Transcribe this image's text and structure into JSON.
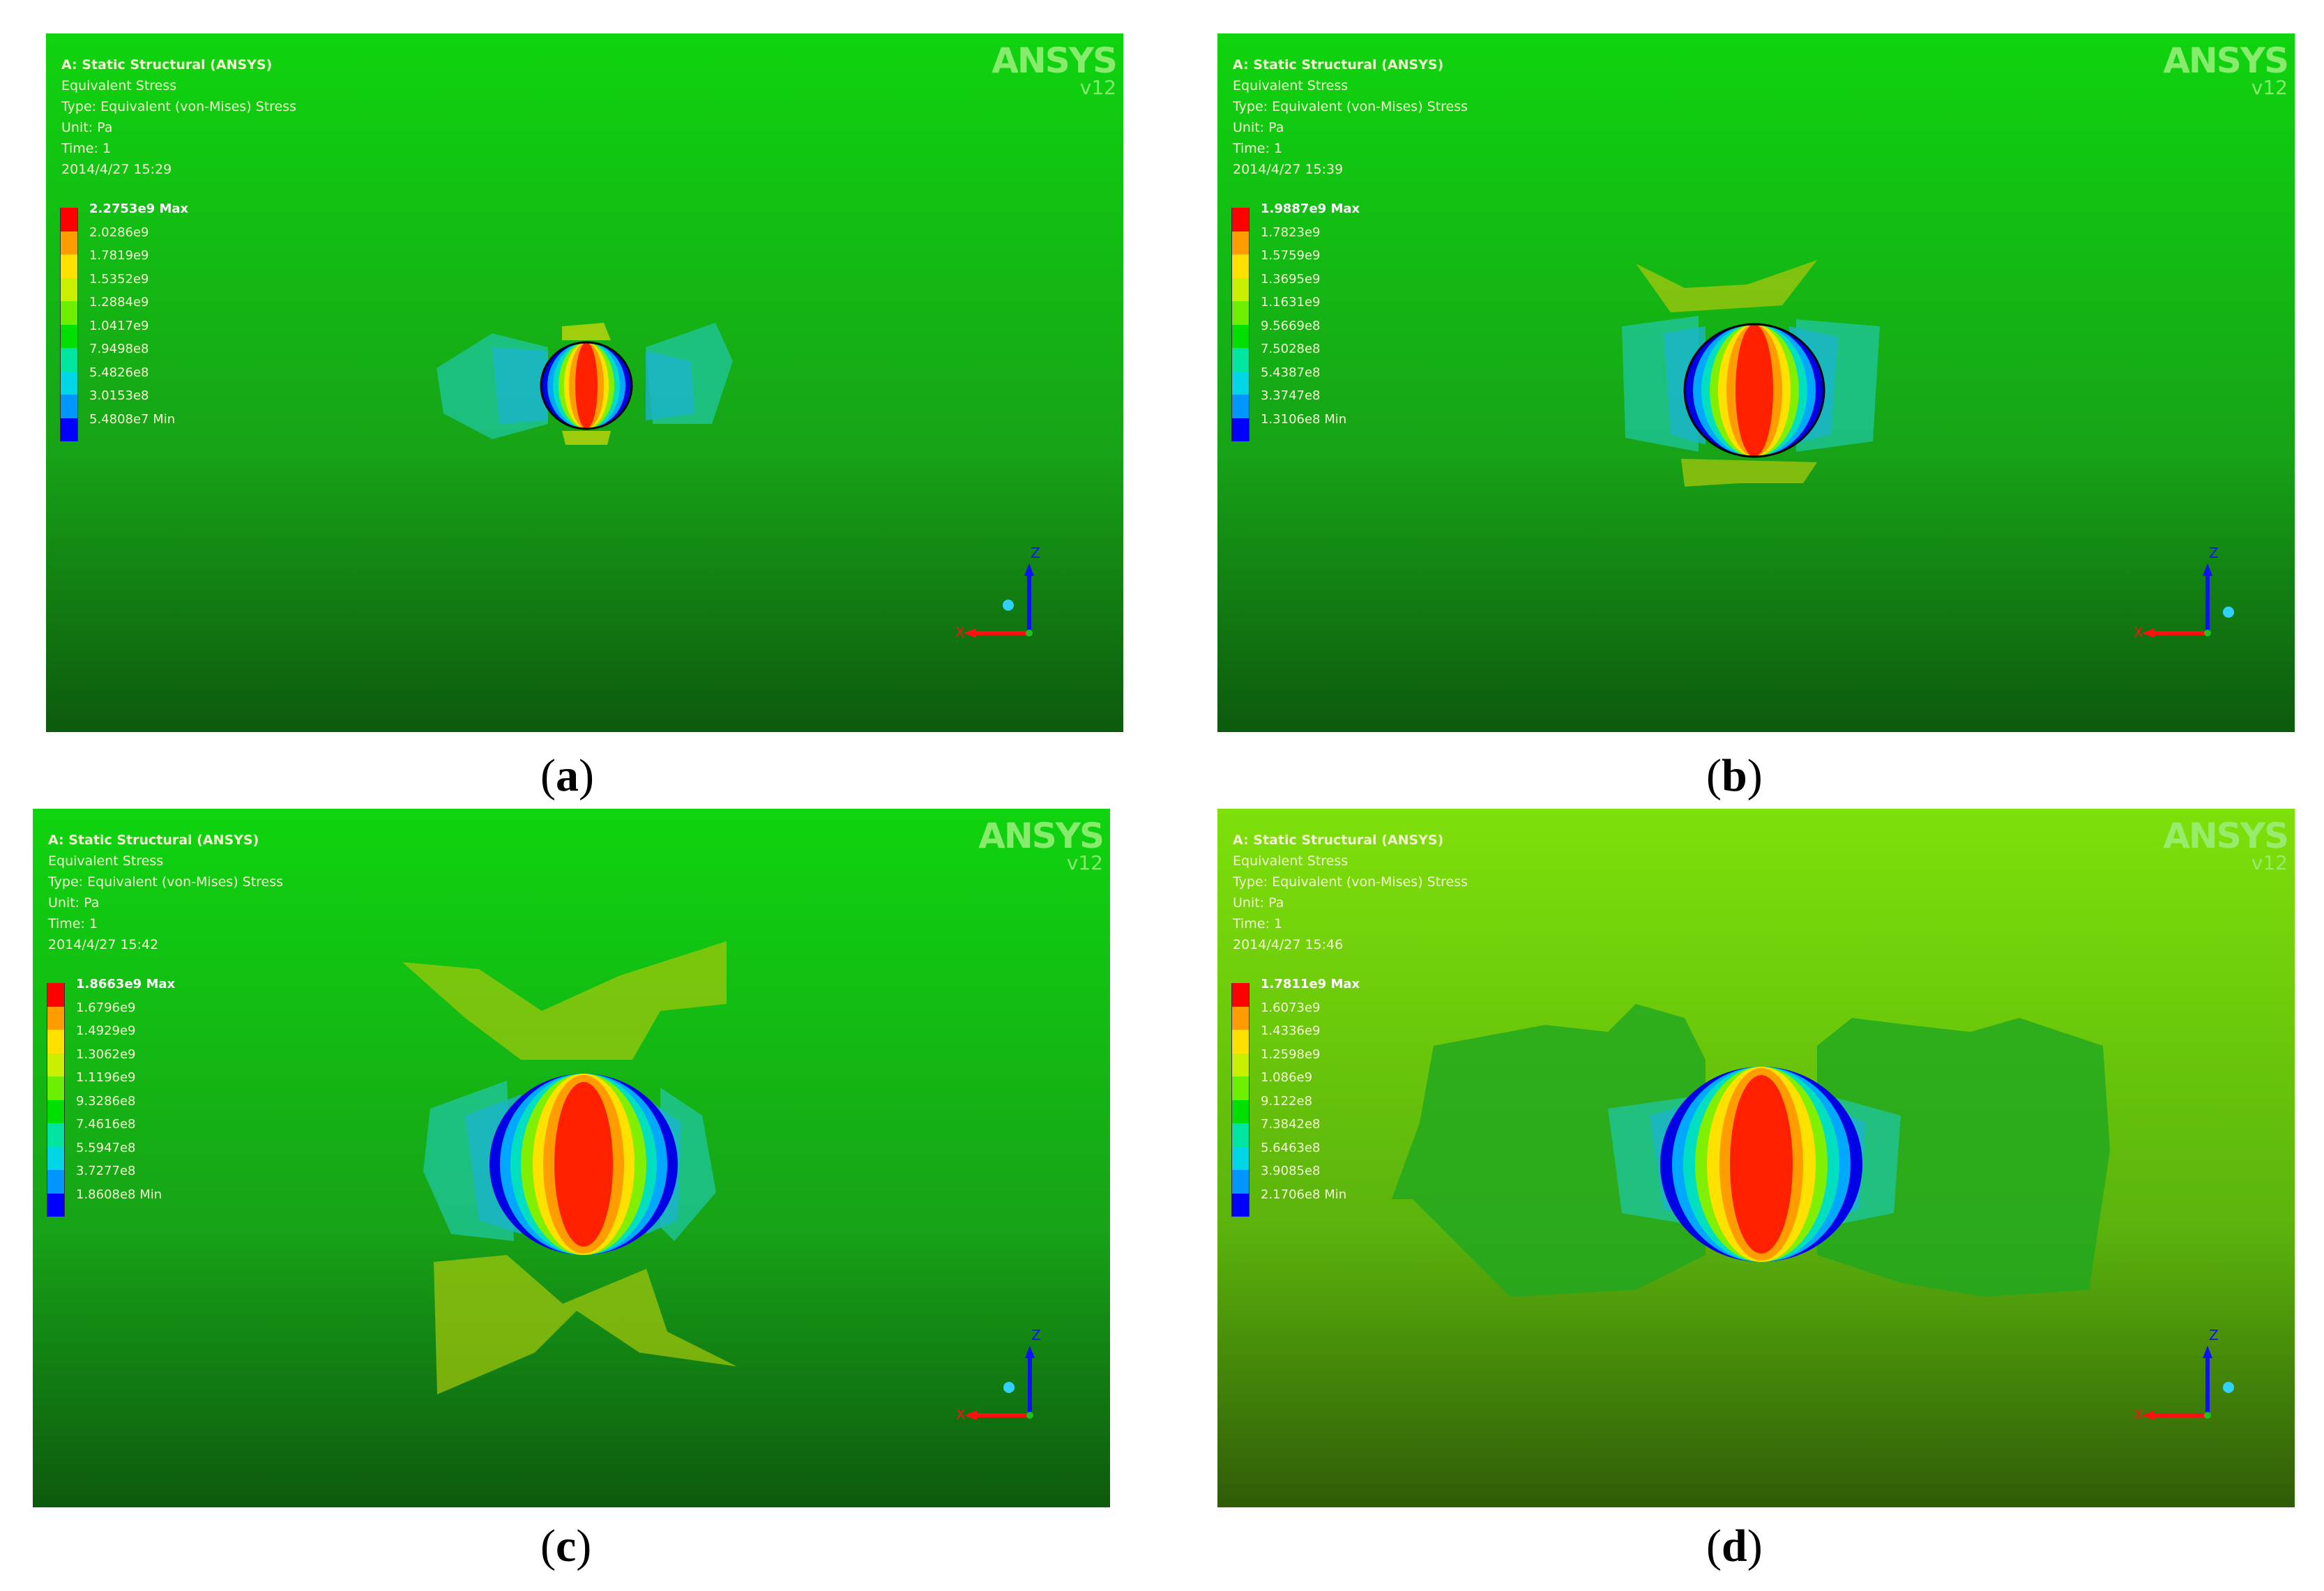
{
  "panels": [
    {
      "id": "a",
      "caption_letter": "a",
      "header": "A: Static Structural (ANSYS)",
      "lines": [
        "Equivalent Stress",
        "Type: Equivalent (von-Mises) Stress",
        "Unit: Pa",
        "Time: 1",
        "2014/4/27 15:29"
      ],
      "legend": [
        "2.2753e9 Max",
        "2.0286e9",
        "1.7819e9",
        "1.5352e9",
        "1.2884e9",
        "1.0417e9",
        "7.9498e8",
        "5.4826e8",
        "3.0153e8",
        "5.4808e7 Min"
      ],
      "logo": "ANSYS",
      "version": "v12",
      "triad": [
        "Z",
        "X"
      ],
      "bg": [
        "#0fd40f",
        "#17a317",
        "#0d5a0d"
      ]
    },
    {
      "id": "b",
      "caption_letter": "b",
      "header": "A: Static Structural (ANSYS)",
      "lines": [
        "Equivalent Stress",
        "Type: Equivalent (von-Mises) Stress",
        "Unit: Pa",
        "Time: 1",
        "2014/4/27 15:39"
      ],
      "legend": [
        "1.9887e9 Max",
        "1.7823e9",
        "1.5759e9",
        "1.3695e9",
        "1.1631e9",
        "9.5669e8",
        "7.5028e8",
        "5.4387e8",
        "3.3747e8",
        "1.3106e8 Min"
      ],
      "logo": "ANSYS",
      "version": "v12",
      "triad": [
        "Z",
        "X"
      ],
      "bg": [
        "#0fd40f",
        "#17a317",
        "#0d5a0d"
      ]
    },
    {
      "id": "c",
      "caption_letter": "c",
      "header": "A: Static Structural (ANSYS)",
      "lines": [
        "Equivalent Stress",
        "Type: Equivalent (von-Mises) Stress",
        "Unit: Pa",
        "Time: 1",
        "2014/4/27 15:42"
      ],
      "legend": [
        "1.8663e9 Max",
        "1.6796e9",
        "1.4929e9",
        "1.3062e9",
        "1.1196e9",
        "9.3286e8",
        "7.4616e8",
        "5.5947e8",
        "3.7277e8",
        "1.8608e8 Min"
      ],
      "logo": "ANSYS",
      "version": "v12",
      "triad": [
        "Z",
        "X"
      ],
      "bg": [
        "#0fd40f",
        "#17a317",
        "#0d5a0d"
      ]
    },
    {
      "id": "d",
      "caption_letter": "d",
      "header": "A: Static Structural (ANSYS)",
      "lines": [
        "Equivalent Stress",
        "Type: Equivalent (von-Mises) Stress",
        "Unit: Pa",
        "Time: 1",
        "2014/4/27 15:46"
      ],
      "legend": [
        "1.7811e9 Max",
        "1.6073e9",
        "1.4336e9",
        "1.2598e9",
        "1.086e9",
        "9.122e8",
        "7.3842e8",
        "5.6463e8",
        "3.9085e8",
        "2.1706e8 Min"
      ],
      "logo": "ANSYS",
      "version": "v12",
      "triad": [
        "Z",
        "X"
      ],
      "bg": [
        "#7ee00a",
        "#5bb30c",
        "#2f5c08"
      ]
    }
  ],
  "legend_colors": [
    "#ff0000",
    "#ff9d00",
    "#ffe100",
    "#c8f000",
    "#6cf000",
    "#00e000",
    "#00e6a0",
    "#00d6e6",
    "#0096ff",
    "#0000ff"
  ]
}
